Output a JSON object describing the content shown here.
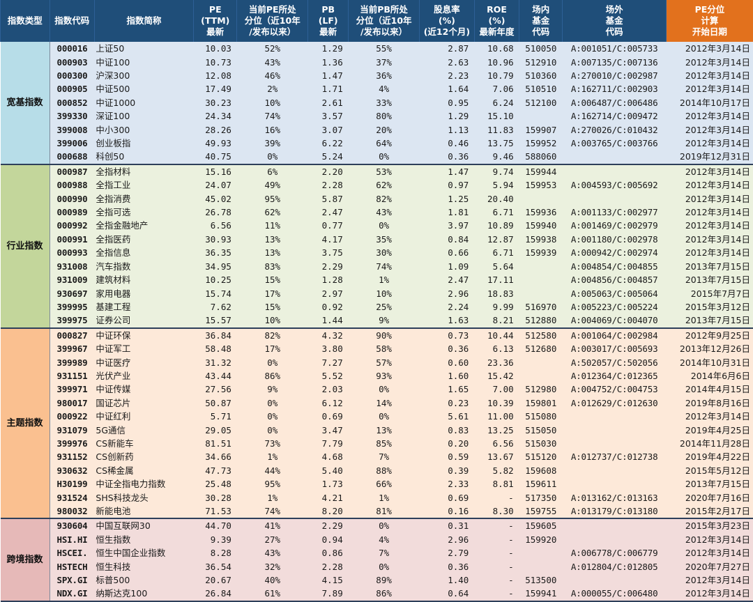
{
  "headers": [
    [
      "指数类型"
    ],
    [
      "指数代码"
    ],
    [
      "指数简称"
    ],
    [
      "PE",
      "(TTM)",
      "最新"
    ],
    [
      "当前PE所处",
      "分位（近10年",
      "/发布以来）"
    ],
    [
      "PB",
      "(LF)",
      "最新"
    ],
    [
      "当前PB所处",
      "分位（近10年",
      "/发布以来）"
    ],
    [
      "股息率",
      "(%)",
      "(近12个月)"
    ],
    [
      "ROE",
      "(%)",
      "最新年度"
    ],
    [
      "场内",
      "基金",
      "代码"
    ],
    [
      "场外",
      "基金",
      "代码"
    ],
    [
      "PE分位",
      "计算",
      "开始日期"
    ]
  ],
  "colors": {
    "header_bg": "#1f4e79",
    "header_highlight": "#e2711d",
    "group_label": [
      "#b7dde8",
      "#c3d69b",
      "#fac090",
      "#e6b9b8"
    ],
    "group_rows": [
      "#dce6f2",
      "#ebf1de",
      "#fde9d9",
      "#f2dcdb"
    ]
  },
  "groups": [
    {
      "label": "宽基指数",
      "rows": [
        [
          "000016",
          "上证50",
          "10.03",
          "52%",
          "1.29",
          "55%",
          "2.87",
          "10.68",
          "510050",
          "A:001051/C:005733",
          "2012年3月14日"
        ],
        [
          "000903",
          "中证100",
          "10.73",
          "43%",
          "1.36",
          "37%",
          "2.63",
          "10.96",
          "512910",
          "A:007135/C:007136",
          "2012年3月14日"
        ],
        [
          "000300",
          "沪深300",
          "12.08",
          "46%",
          "1.47",
          "36%",
          "2.23",
          "10.79",
          "510360",
          "A:270010/C:002987",
          "2012年3月14日"
        ],
        [
          "000905",
          "中证500",
          "17.49",
          "2%",
          "1.71",
          "4%",
          "1.64",
          "7.06",
          "510510",
          "A:162711/C:002903",
          "2012年3月14日"
        ],
        [
          "000852",
          "中证1000",
          "30.23",
          "10%",
          "2.61",
          "33%",
          "0.95",
          "6.24",
          "512100",
          "A:006487/C:006486",
          "2014年10月17日"
        ],
        [
          "399330",
          "深证100",
          "24.34",
          "74%",
          "3.57",
          "80%",
          "1.29",
          "15.10",
          "",
          "A:162714/C:009472",
          "2012年3月14日"
        ],
        [
          "399008",
          "中小300",
          "28.26",
          "16%",
          "3.07",
          "20%",
          "1.13",
          "11.83",
          "159907",
          "A:270026/C:010432",
          "2012年3月14日"
        ],
        [
          "399006",
          "创业板指",
          "49.93",
          "39%",
          "6.22",
          "64%",
          "0.46",
          "13.75",
          "159952",
          "A:003765/C:003766",
          "2012年3月14日"
        ],
        [
          "000688",
          "科创50",
          "40.75",
          "0%",
          "5.24",
          "0%",
          "0.36",
          "9.46",
          "588060",
          "",
          "2019年12月31日"
        ]
      ]
    },
    {
      "label": "行业指数",
      "rows": [
        [
          "000987",
          "全指材料",
          "15.16",
          "6%",
          "2.20",
          "53%",
          "1.47",
          "9.74",
          "159944",
          "",
          "2012年3月14日"
        ],
        [
          "000988",
          "全指工业",
          "24.07",
          "49%",
          "2.28",
          "62%",
          "0.97",
          "5.94",
          "159953",
          "A:004593/C:005692",
          "2012年3月14日"
        ],
        [
          "000990",
          "全指消费",
          "45.02",
          "95%",
          "5.87",
          "82%",
          "1.25",
          "20.40",
          "",
          "",
          "2012年3月14日"
        ],
        [
          "000989",
          "全指可选",
          "26.78",
          "62%",
          "2.47",
          "43%",
          "1.81",
          "6.71",
          "159936",
          "A:001133/C:002977",
          "2012年3月14日"
        ],
        [
          "000992",
          "全指金融地产",
          "6.56",
          "11%",
          "0.77",
          "0%",
          "3.97",
          "10.89",
          "159940",
          "A:001469/C:002979",
          "2012年3月14日"
        ],
        [
          "000991",
          "全指医药",
          "30.93",
          "13%",
          "4.17",
          "35%",
          "0.84",
          "12.87",
          "159938",
          "A:001180/C:002978",
          "2012年3月14日"
        ],
        [
          "000993",
          "全指信息",
          "36.35",
          "13%",
          "3.75",
          "30%",
          "0.66",
          "6.71",
          "159939",
          "A:000942/C:002974",
          "2012年3月14日"
        ],
        [
          "931008",
          "汽车指数",
          "34.95",
          "83%",
          "2.29",
          "74%",
          "1.09",
          "5.64",
          "",
          "A:004854/C:004855",
          "2013年7月15日"
        ],
        [
          "931009",
          "建筑材料",
          "10.25",
          "15%",
          "1.28",
          "1%",
          "2.47",
          "17.11",
          "",
          "A:004856/C:004857",
          "2013年7月15日"
        ],
        [
          "930697",
          "家用电器",
          "15.74",
          "17%",
          "2.97",
          "10%",
          "2.96",
          "18.83",
          "",
          "A:005063/C:005064",
          "2015年7月7日"
        ],
        [
          "399995",
          "基建工程",
          "7.62",
          "15%",
          "0.92",
          "25%",
          "2.24",
          "9.99",
          "516970",
          "A:005223/C:005224",
          "2015年3月12日"
        ],
        [
          "399975",
          "证券公司",
          "15.57",
          "10%",
          "1.44",
          "9%",
          "1.63",
          "8.21",
          "512880",
          "A:004069/C:004070",
          "2013年7月15日"
        ]
      ]
    },
    {
      "label": "主题指数",
      "rows": [
        [
          "000827",
          "中证环保",
          "36.84",
          "82%",
          "4.32",
          "90%",
          "0.73",
          "10.44",
          "512580",
          "A:001064/C:002984",
          "2012年9月25日"
        ],
        [
          "399967",
          "中证军工",
          "58.48",
          "17%",
          "3.80",
          "58%",
          "0.36",
          "6.13",
          "512680",
          "A:003017/C:005693",
          "2013年12月26日"
        ],
        [
          "399989",
          "中证医疗",
          "31.32",
          "0%",
          "7.27",
          "57%",
          "0.60",
          "23.36",
          "",
          "A:502057/C:502056",
          "2014年10月31日"
        ],
        [
          "931151",
          "光伏产业",
          "43.44",
          "86%",
          "5.52",
          "93%",
          "1.60",
          "15.42",
          "",
          "A:012364/C:012365",
          "2014年6月6日"
        ],
        [
          "399971",
          "中证传媒",
          "27.56",
          "9%",
          "2.03",
          "0%",
          "1.65",
          "7.00",
          "512980",
          "A:004752/C:004753",
          "2014年4月15日"
        ],
        [
          "980017",
          "国证芯片",
          "50.87",
          "0%",
          "6.12",
          "14%",
          "0.23",
          "10.39",
          "159801",
          "A:012629/C:012630",
          "2019年8月16日"
        ],
        [
          "000922",
          "中证红利",
          "5.71",
          "0%",
          "0.69",
          "0%",
          "5.61",
          "11.00",
          "515080",
          "",
          "2012年3月14日"
        ],
        [
          "931079",
          "5G通信",
          "29.05",
          "0%",
          "3.47",
          "13%",
          "0.83",
          "13.25",
          "515050",
          "",
          "2019年4月25日"
        ],
        [
          "399976",
          "CS新能车",
          "81.51",
          "73%",
          "7.79",
          "85%",
          "0.20",
          "6.56",
          "515030",
          "",
          "2014年11月28日"
        ],
        [
          "931152",
          "CS创新药",
          "34.66",
          "1%",
          "4.68",
          "7%",
          "0.59",
          "13.67",
          "515120",
          "A:012737/C:012738",
          "2019年4月22日"
        ],
        [
          "930632",
          "CS稀金属",
          "47.73",
          "44%",
          "5.40",
          "88%",
          "0.39",
          "5.82",
          "159608",
          "",
          "2015年5月12日"
        ],
        [
          "H30199",
          "中证全指电力指数",
          "25.48",
          "95%",
          "1.73",
          "66%",
          "2.33",
          "8.81",
          "159611",
          "",
          "2013年7月15日"
        ],
        [
          "931524",
          "SHS科技龙头",
          "30.28",
          "1%",
          "4.21",
          "1%",
          "0.69",
          "-",
          "517350",
          "A:013162/C:013163",
          "2020年7月16日"
        ],
        [
          "980032",
          "新能电池",
          "71.53",
          "74%",
          "8.20",
          "81%",
          "0.16",
          "8.30",
          "159755",
          "A:013179/C:013180",
          "2015年2月17日"
        ]
      ]
    },
    {
      "label": "跨境指数",
      "rows": [
        [
          "930604",
          "中国互联网30",
          "44.70",
          "41%",
          "2.29",
          "0%",
          "0.31",
          "-",
          "159605",
          "",
          "2015年3月23日"
        ],
        [
          "HSI.HI",
          "恒生指数",
          "9.39",
          "27%",
          "0.94",
          "4%",
          "2.96",
          "-",
          "159920",
          "",
          "2012年3月14日"
        ],
        [
          "HSCEI.",
          "恒生中国企业指数",
          "8.28",
          "43%",
          "0.86",
          "7%",
          "2.79",
          "-",
          "",
          "A:006778/C:006779",
          "2012年3月14日"
        ],
        [
          "HSTECH",
          "恒生科技",
          "36.54",
          "32%",
          "2.28",
          "0%",
          "0.36",
          "-",
          "",
          "A:012804/C:012805",
          "2020年7月27日"
        ],
        [
          "SPX.GI",
          "标普500",
          "20.67",
          "40%",
          "4.15",
          "89%",
          "1.40",
          "-",
          "513500",
          "",
          "2012年3月14日"
        ],
        [
          "NDX.GI",
          "纳斯达克100",
          "26.84",
          "61%",
          "7.89",
          "86%",
          "0.64",
          "-",
          "159941",
          "A:000055/C:006480",
          "2012年3月14日"
        ]
      ]
    }
  ]
}
